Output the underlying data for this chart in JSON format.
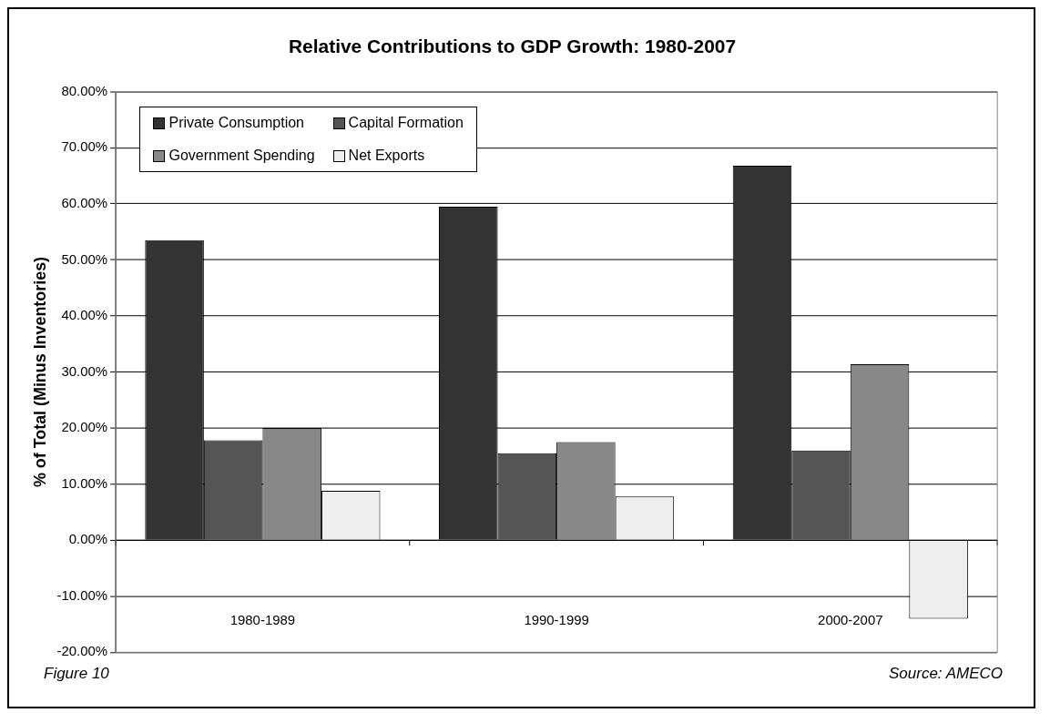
{
  "chart_data": {
    "type": "bar",
    "title": "Relative Contributions to GDP Growth: 1980-2007",
    "ylabel": "% of Total (Minus Inventories)",
    "annotations": [
      "Figure 10",
      "Source: AMECO"
    ],
    "categories": [
      "1980-1989",
      "1990-1999",
      "2000-2007"
    ],
    "series": [
      {
        "name": "Private Consumption",
        "color": "#333333",
        "values": [
          53.5,
          59.5,
          66.8
        ]
      },
      {
        "name": "Capital Formation",
        "color": "#555555",
        "values": [
          17.8,
          15.5,
          16
        ]
      },
      {
        "name": "Government Spending",
        "color": "#888888",
        "values": [
          20,
          17.5,
          31.4
        ]
      },
      {
        "name": "Net Exports",
        "color": "#eeeeee",
        "values": [
          8.8,
          7.8,
          -14
        ]
      }
    ],
    "ylim": [
      -20,
      80
    ],
    "yticks": [
      {
        "value": -20,
        "label": "-20.00%"
      },
      {
        "value": -10,
        "label": "-10.00%"
      },
      {
        "value": 0,
        "label": "0.00%"
      },
      {
        "value": 10,
        "label": "10.00%"
      },
      {
        "value": 20,
        "label": "20.00%"
      },
      {
        "value": 30,
        "label": "30.00%"
      },
      {
        "value": 40,
        "label": "40.00%"
      },
      {
        "value": 50,
        "label": "50.00%"
      },
      {
        "value": 60,
        "label": "60.00%"
      },
      {
        "value": 70,
        "label": "70.00%"
      },
      {
        "value": 80,
        "label": "80.00%"
      }
    ],
    "grid": "y",
    "legend": "top left"
  }
}
